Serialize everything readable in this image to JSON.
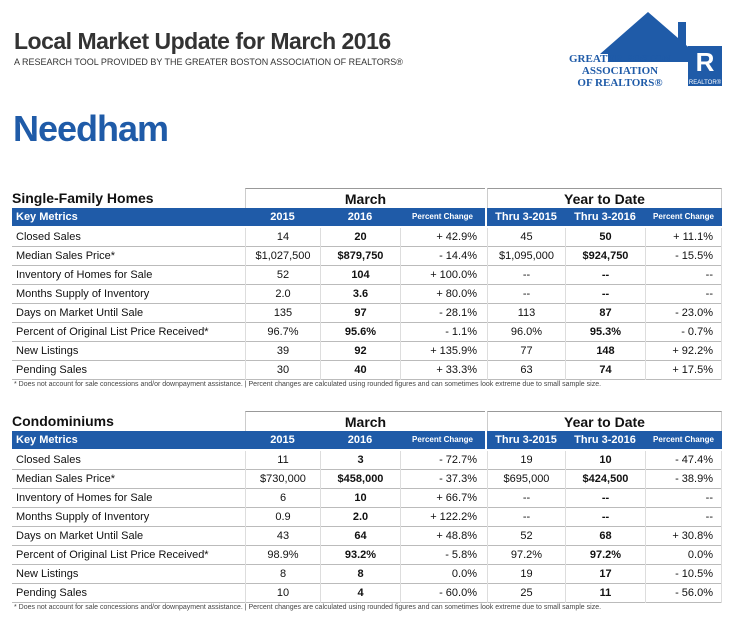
{
  "header": {
    "title": "Local Market Update for March 2016",
    "subtitle": "A RESEARCH TOOL PROVIDED BY THE GREATER BOSTON ASSOCIATION OF REALTORS®",
    "logo": {
      "lines": [
        "GREATER BOSTON",
        "ASSOCIATION",
        "OF REALTORS®"
      ],
      "mark": "R",
      "mark_caption": "REALTOR®"
    },
    "town": "Needham"
  },
  "sections": [
    {
      "title": "Single-Family Homes",
      "groups": [
        "March",
        "Year to Date"
      ],
      "columns": [
        "Key Metrics",
        "2015",
        "2016",
        "Percent Change",
        "Thru 3-2015",
        "Thru 3-2016",
        "Percent Change"
      ],
      "rows": [
        [
          "Closed Sales",
          "14",
          "20",
          "+ 42.9%",
          "45",
          "50",
          "+ 11.1%"
        ],
        [
          "Median Sales Price*",
          "$1,027,500",
          "$879,750",
          "- 14.4%",
          "$1,095,000",
          "$924,750",
          "- 15.5%"
        ],
        [
          "Inventory of Homes for Sale",
          "52",
          "104",
          "+ 100.0%",
          "--",
          "--",
          "--"
        ],
        [
          "Months Supply of Inventory",
          "2.0",
          "3.6",
          "+ 80.0%",
          "--",
          "--",
          "--"
        ],
        [
          "Days on Market Until Sale",
          "135",
          "97",
          "- 28.1%",
          "113",
          "87",
          "- 23.0%"
        ],
        [
          "Percent of Original List Price Received*",
          "96.7%",
          "95.6%",
          "- 1.1%",
          "96.0%",
          "95.3%",
          "- 0.7%"
        ],
        [
          "New Listings",
          "39",
          "92",
          "+ 135.9%",
          "77",
          "148",
          "+ 92.2%"
        ],
        [
          "Pending Sales",
          "30",
          "40",
          "+ 33.3%",
          "63",
          "74",
          "+ 17.5%"
        ]
      ],
      "footnote": "* Does not account for sale concessions and/or downpayment assistance.  |  Percent changes are calculated using rounded figures and can sometimes look extreme due to small sample size."
    },
    {
      "title": "Condominiums",
      "groups": [
        "March",
        "Year to Date"
      ],
      "columns": [
        "Key Metrics",
        "2015",
        "2016",
        "Percent Change",
        "Thru 3-2015",
        "Thru 3-2016",
        "Percent Change"
      ],
      "rows": [
        [
          "Closed Sales",
          "11",
          "3",
          "- 72.7%",
          "19",
          "10",
          "- 47.4%"
        ],
        [
          "Median Sales Price*",
          "$730,000",
          "$458,000",
          "- 37.3%",
          "$695,000",
          "$424,500",
          "- 38.9%"
        ],
        [
          "Inventory of Homes for Sale",
          "6",
          "10",
          "+ 66.7%",
          "--",
          "--",
          "--"
        ],
        [
          "Months Supply of Inventory",
          "0.9",
          "2.0",
          "+ 122.2%",
          "--",
          "--",
          "--"
        ],
        [
          "Days on Market Until Sale",
          "43",
          "64",
          "+ 48.8%",
          "52",
          "68",
          "+ 30.8%"
        ],
        [
          "Percent of Original List Price Received*",
          "98.9%",
          "93.2%",
          "- 5.8%",
          "97.2%",
          "97.2%",
          "0.0%"
        ],
        [
          "New Listings",
          "8",
          "8",
          "0.0%",
          "19",
          "17",
          "- 10.5%"
        ],
        [
          "Pending Sales",
          "10",
          "4",
          "- 60.0%",
          "25",
          "11",
          "- 56.0%"
        ]
      ],
      "footnote": "* Does not account for sale concessions and/or downpayment assistance.  |  Percent changes are calculated using rounded figures and can sometimes look extreme due to small sample size."
    }
  ]
}
